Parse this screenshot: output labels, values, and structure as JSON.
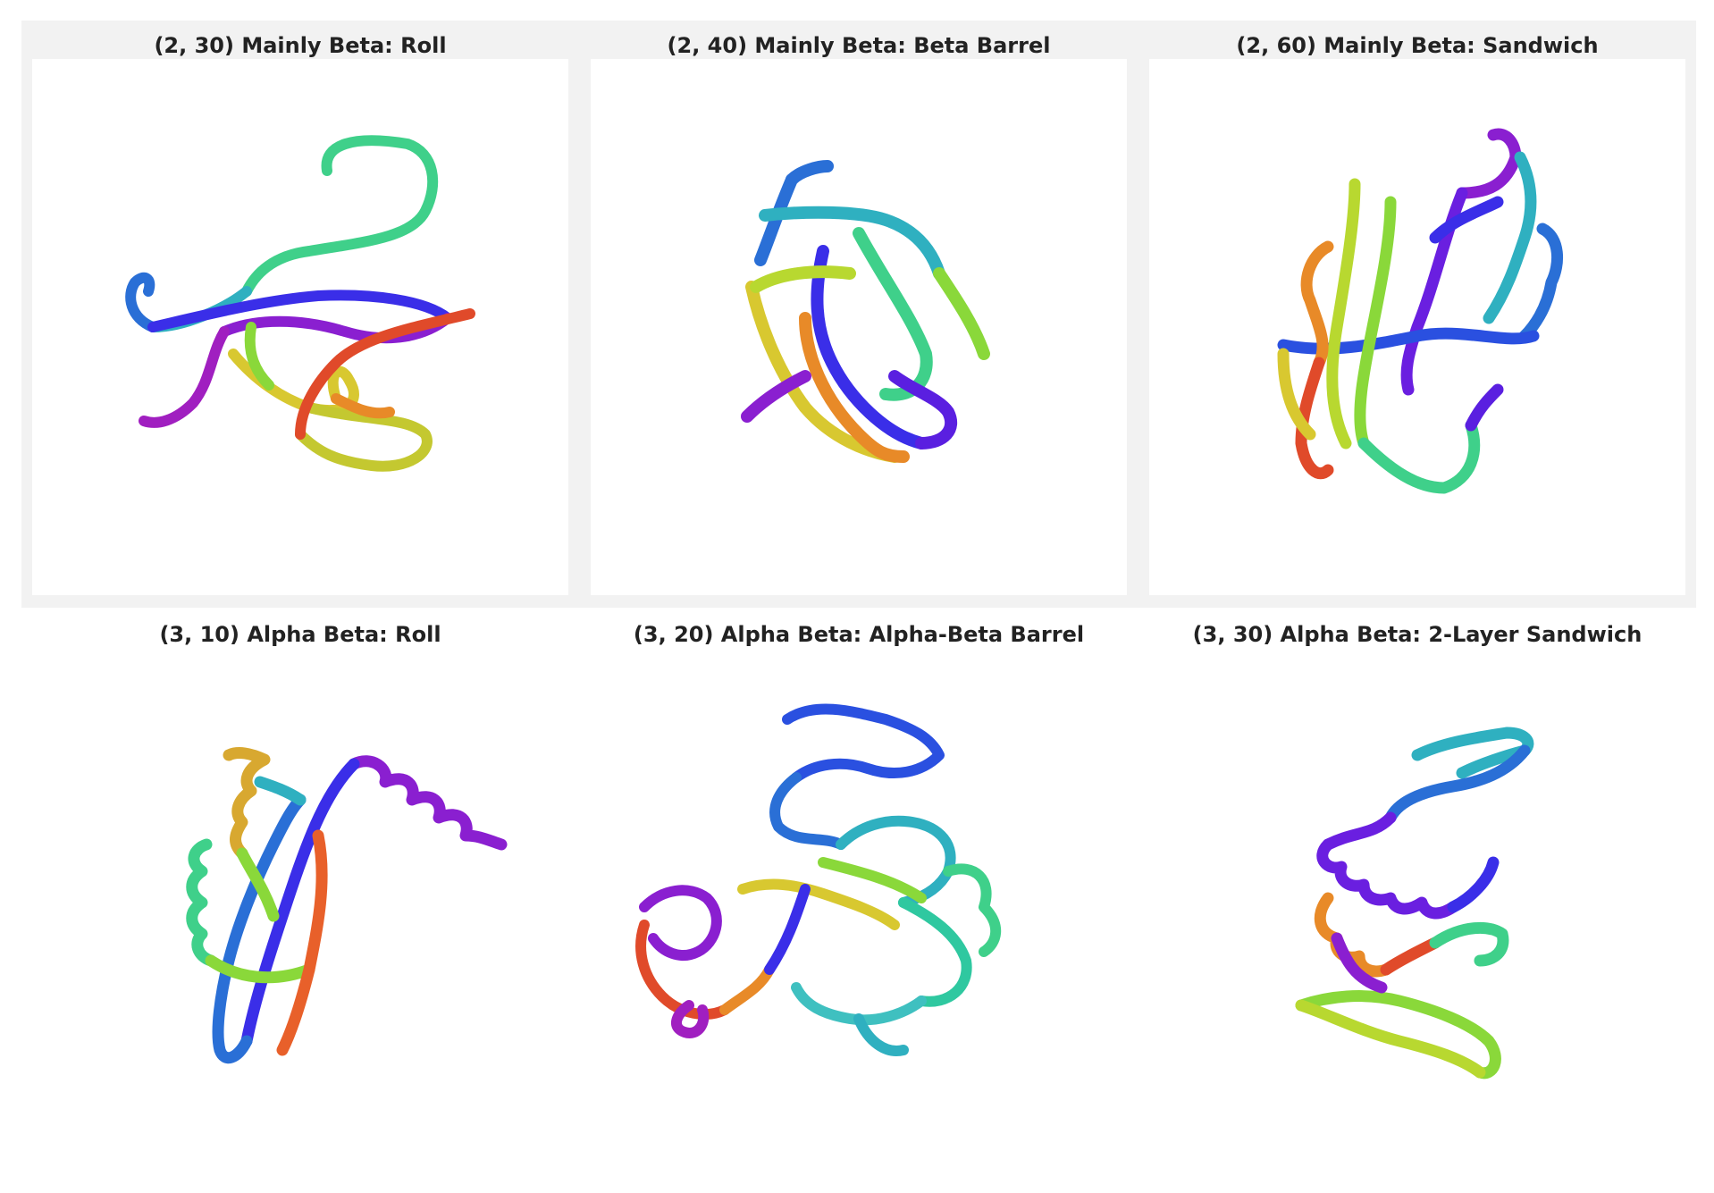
{
  "panels": [
    {
      "title": "(2, 30) Mainly Beta: Roll"
    },
    {
      "title": "(2, 40) Mainly Beta: Beta Barrel"
    },
    {
      "title": "(2, 60) Mainly Beta: Sandwich"
    },
    {
      "title": "(3, 10) Alpha Beta: Roll"
    },
    {
      "title": "(3, 20) Alpha Beta: Alpha-Beta Barrel"
    },
    {
      "title": "(3, 30) Alpha Beta: 2-Layer Sandwich"
    }
  ],
  "colors": {
    "top_row_background": "#f2f2f2",
    "image_background": "#ffffff",
    "ribbon_palette": [
      "#8a1fd0",
      "#3a2ee8",
      "#2a6fd6",
      "#2fb0c0",
      "#3fd08a",
      "#8ad83a",
      "#d8c830",
      "#e88a28",
      "#e04a2a"
    ]
  }
}
